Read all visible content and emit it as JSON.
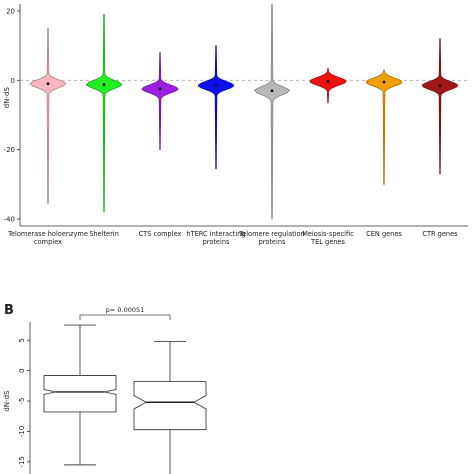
{
  "chart_data": [
    {
      "type": "violin",
      "ylabel": "dN-dS",
      "ylim": [
        -42,
        22
      ],
      "yticks": [
        20,
        0,
        -20,
        -40
      ],
      "reference_line": 0,
      "categories": [
        {
          "label": [
            "Telomerase holoenzyme",
            "complex"
          ],
          "color": "#f7b6bf",
          "median": -1.0,
          "min": -35.5,
          "max": 15.0
        },
        {
          "label": [
            "Shelterin"
          ],
          "color": "#22ee22",
          "median": -1.2,
          "min": -38.0,
          "max": 19.0
        },
        {
          "label": [
            "CTS complex"
          ],
          "color": "#9b1fe0",
          "median": -2.5,
          "min": -20.0,
          "max": 8.0
        },
        {
          "label": [
            "hTERC interacting",
            "proteins"
          ],
          "color": "#1010ee",
          "median": -1.5,
          "min": -25.5,
          "max": 10.0
        },
        {
          "label": [
            "Telomere regulation",
            "proteins"
          ],
          "color": "#b8b8b8",
          "median": -3.0,
          "min": -40.0,
          "max": 22.0
        },
        {
          "label": [
            "Meiosis-specific",
            "TEL genes"
          ],
          "color": "#ee1111",
          "median": -0.3,
          "min": -6.5,
          "max": 3.5
        },
        {
          "label": [
            "CEN genes"
          ],
          "color": "#f2a000",
          "median": -0.5,
          "min": -30.0,
          "max": 3.0
        },
        {
          "label": [
            "CTR genes"
          ],
          "color": "#a01818",
          "median": -1.5,
          "min": -27.0,
          "max": 12.0
        }
      ]
    },
    {
      "type": "boxplot",
      "panel_label": "B",
      "ylabel": "dN-dS",
      "ylim": [
        -17,
        8
      ],
      "yticks": [
        5,
        0,
        -5,
        -10,
        -15
      ],
      "annotation": "p= 0.00051",
      "boxes": [
        {
          "median": -3.5,
          "q1": -6.8,
          "q3": -0.8,
          "whisker_low": -15.5,
          "whisker_high": 7.5,
          "notch": [
            -3.9,
            -3.1
          ]
        },
        {
          "median": -5.2,
          "q1": -9.7,
          "q3": -1.8,
          "whisker_low": -17,
          "whisker_high": 4.8,
          "notch": [
            -6.3,
            -4.1
          ]
        }
      ]
    }
  ]
}
